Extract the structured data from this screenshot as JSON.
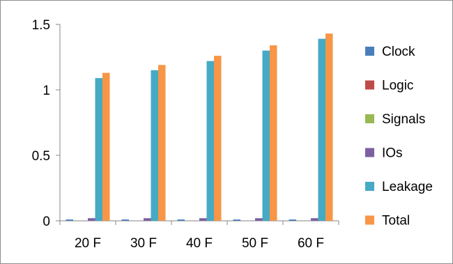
{
  "chart_data": {
    "type": "bar",
    "title": "",
    "xlabel": "",
    "ylabel": "",
    "categories": [
      "20 F",
      "30 F",
      "40 F",
      "50 F",
      "60 F"
    ],
    "ylim": [
      0,
      1.5
    ],
    "yticks": [
      "0",
      "0.5",
      "1",
      "1.5"
    ],
    "grid": false,
    "legend_position": "right",
    "series": [
      {
        "name": "Clock",
        "color": "#4a7ebb",
        "values": [
          0.01,
          0.01,
          0.01,
          0.01,
          0.01
        ]
      },
      {
        "name": "Logic",
        "color": "#be4b48",
        "values": [
          0.0,
          0.0,
          0.0,
          0.0,
          0.0
        ]
      },
      {
        "name": "Signals",
        "color": "#98b954",
        "values": [
          0.0,
          0.0,
          0.0,
          0.0,
          0.0
        ]
      },
      {
        "name": "IOs",
        "color": "#7d60a0",
        "values": [
          0.02,
          0.02,
          0.02,
          0.02,
          0.02
        ]
      },
      {
        "name": "Leakage",
        "color": "#46aac5",
        "values": [
          1.09,
          1.15,
          1.22,
          1.3,
          1.39
        ]
      },
      {
        "name": "Total",
        "color": "#f79646",
        "values": [
          1.13,
          1.19,
          1.26,
          1.34,
          1.43
        ]
      }
    ]
  }
}
